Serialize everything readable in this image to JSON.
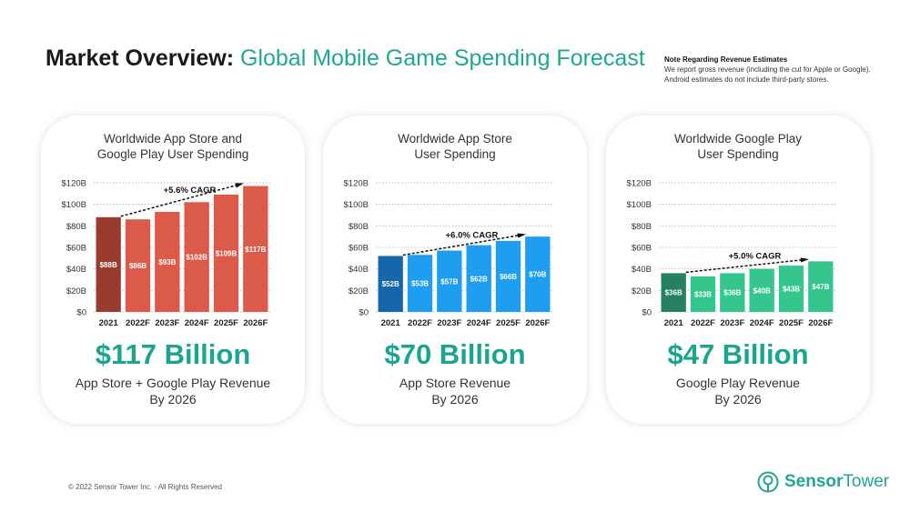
{
  "header": {
    "title_bold": "Market Overview:",
    "title_rest": "Global Mobile Game Spending Forecast"
  },
  "note": {
    "heading": "Note Regarding Revenue Estimates",
    "line1": "We report gross revenue (including the cut for Apple or Google).",
    "line2": "Android estimates do not include third-party stores."
  },
  "chart_data": [
    {
      "type": "bar",
      "title": "Worldwide App Store and\nGoogle Play User Spending",
      "categories": [
        "2021",
        "2022F",
        "2023F",
        "2024F",
        "2025F",
        "2026F"
      ],
      "values": [
        88,
        86,
        93,
        102,
        109,
        117
      ],
      "data_labels": [
        "$88B",
        "$86B",
        "$93B",
        "$102B",
        "$109B",
        "$117B"
      ],
      "yticks": [
        "$0",
        "$20B",
        "$40B",
        "$60B",
        "$80B",
        "$100B",
        "$120B"
      ],
      "ylim": [
        0,
        120
      ],
      "annotation": "+5.6% CAGR",
      "color": "#dc5a4a",
      "highlight_color": "#9a3b30",
      "grid": true
    },
    {
      "type": "bar",
      "title": "Worldwide App Store\nUser Spending",
      "categories": [
        "2021",
        "2022F",
        "2023F",
        "2024F",
        "2025F",
        "2026F"
      ],
      "values": [
        52,
        53,
        57,
        62,
        66,
        70
      ],
      "data_labels": [
        "$52B",
        "$53B",
        "$57B",
        "$62B",
        "$66B",
        "$70B"
      ],
      "yticks": [
        "$0",
        "$20B",
        "$40B",
        "$60B",
        "$80B",
        "$100B",
        "$120B"
      ],
      "ylim": [
        0,
        120
      ],
      "annotation": "+6.0% CAGR",
      "color": "#1f9df0",
      "highlight_color": "#1666ab",
      "grid": true
    },
    {
      "type": "bar",
      "title": "Worldwide Google Play\nUser Spending",
      "categories": [
        "2021",
        "2022F",
        "2023F",
        "2024F",
        "2025F",
        "2026F"
      ],
      "values": [
        36,
        33,
        36,
        40,
        43,
        47
      ],
      "data_labels": [
        "$36B",
        "$33B",
        "$36B",
        "$40B",
        "$43B",
        "$47B"
      ],
      "yticks": [
        "$0",
        "$20B",
        "$40B",
        "$60B",
        "$80B",
        "$100B",
        "$120B"
      ],
      "ylim": [
        0,
        120
      ],
      "annotation": "+5.0% CAGR",
      "color": "#35c68e",
      "highlight_color": "#27805f",
      "grid": true
    }
  ],
  "cards": [
    {
      "big": "$117 Billion",
      "caption": "App Store + Google Play Revenue\nBy 2026"
    },
    {
      "big": "$70 Billion",
      "caption": "App Store Revenue\nBy 2026"
    },
    {
      "big": "$47 Billion",
      "caption": "Google Play Revenue\nBy 2026"
    }
  ],
  "footer": {
    "copyright": "© 2022 Sensor Tower Inc. - All Rights Reserved",
    "logo_bold": "Sensor",
    "logo_rest": "Tower"
  }
}
